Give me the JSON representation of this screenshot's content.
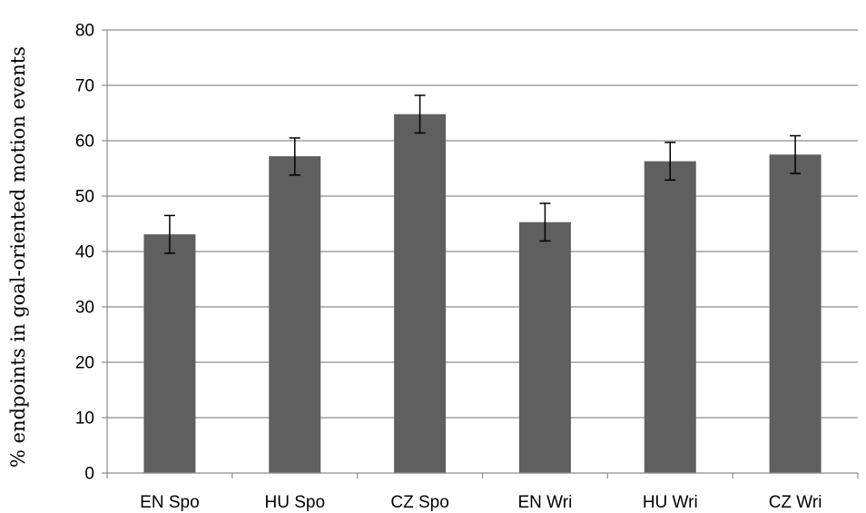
{
  "chart_data": {
    "type": "bar",
    "categories": [
      "EN Spo",
      "HU Spo",
      "CZ Spo",
      "EN Wri",
      "HU Wri",
      "CZ Wri"
    ],
    "values": [
      43.1,
      57.2,
      64.8,
      45.3,
      56.3,
      57.5
    ],
    "error_low": [
      39.7,
      53.8,
      61.4,
      41.9,
      52.9,
      54.1
    ],
    "error_high": [
      46.5,
      60.5,
      68.2,
      48.7,
      59.7,
      60.9
    ],
    "xlabel": "",
    "ylabel": "% endpoints in goal-oriented motion events",
    "ylim": [
      0,
      80
    ],
    "yticks": [
      0,
      10,
      20,
      30,
      40,
      50,
      60,
      70,
      80
    ],
    "grid": true,
    "legend": "none",
    "bar_color": "#5f5f5f",
    "grid_color": "#8c8c8c",
    "axis_color": "#8c8c8c"
  }
}
